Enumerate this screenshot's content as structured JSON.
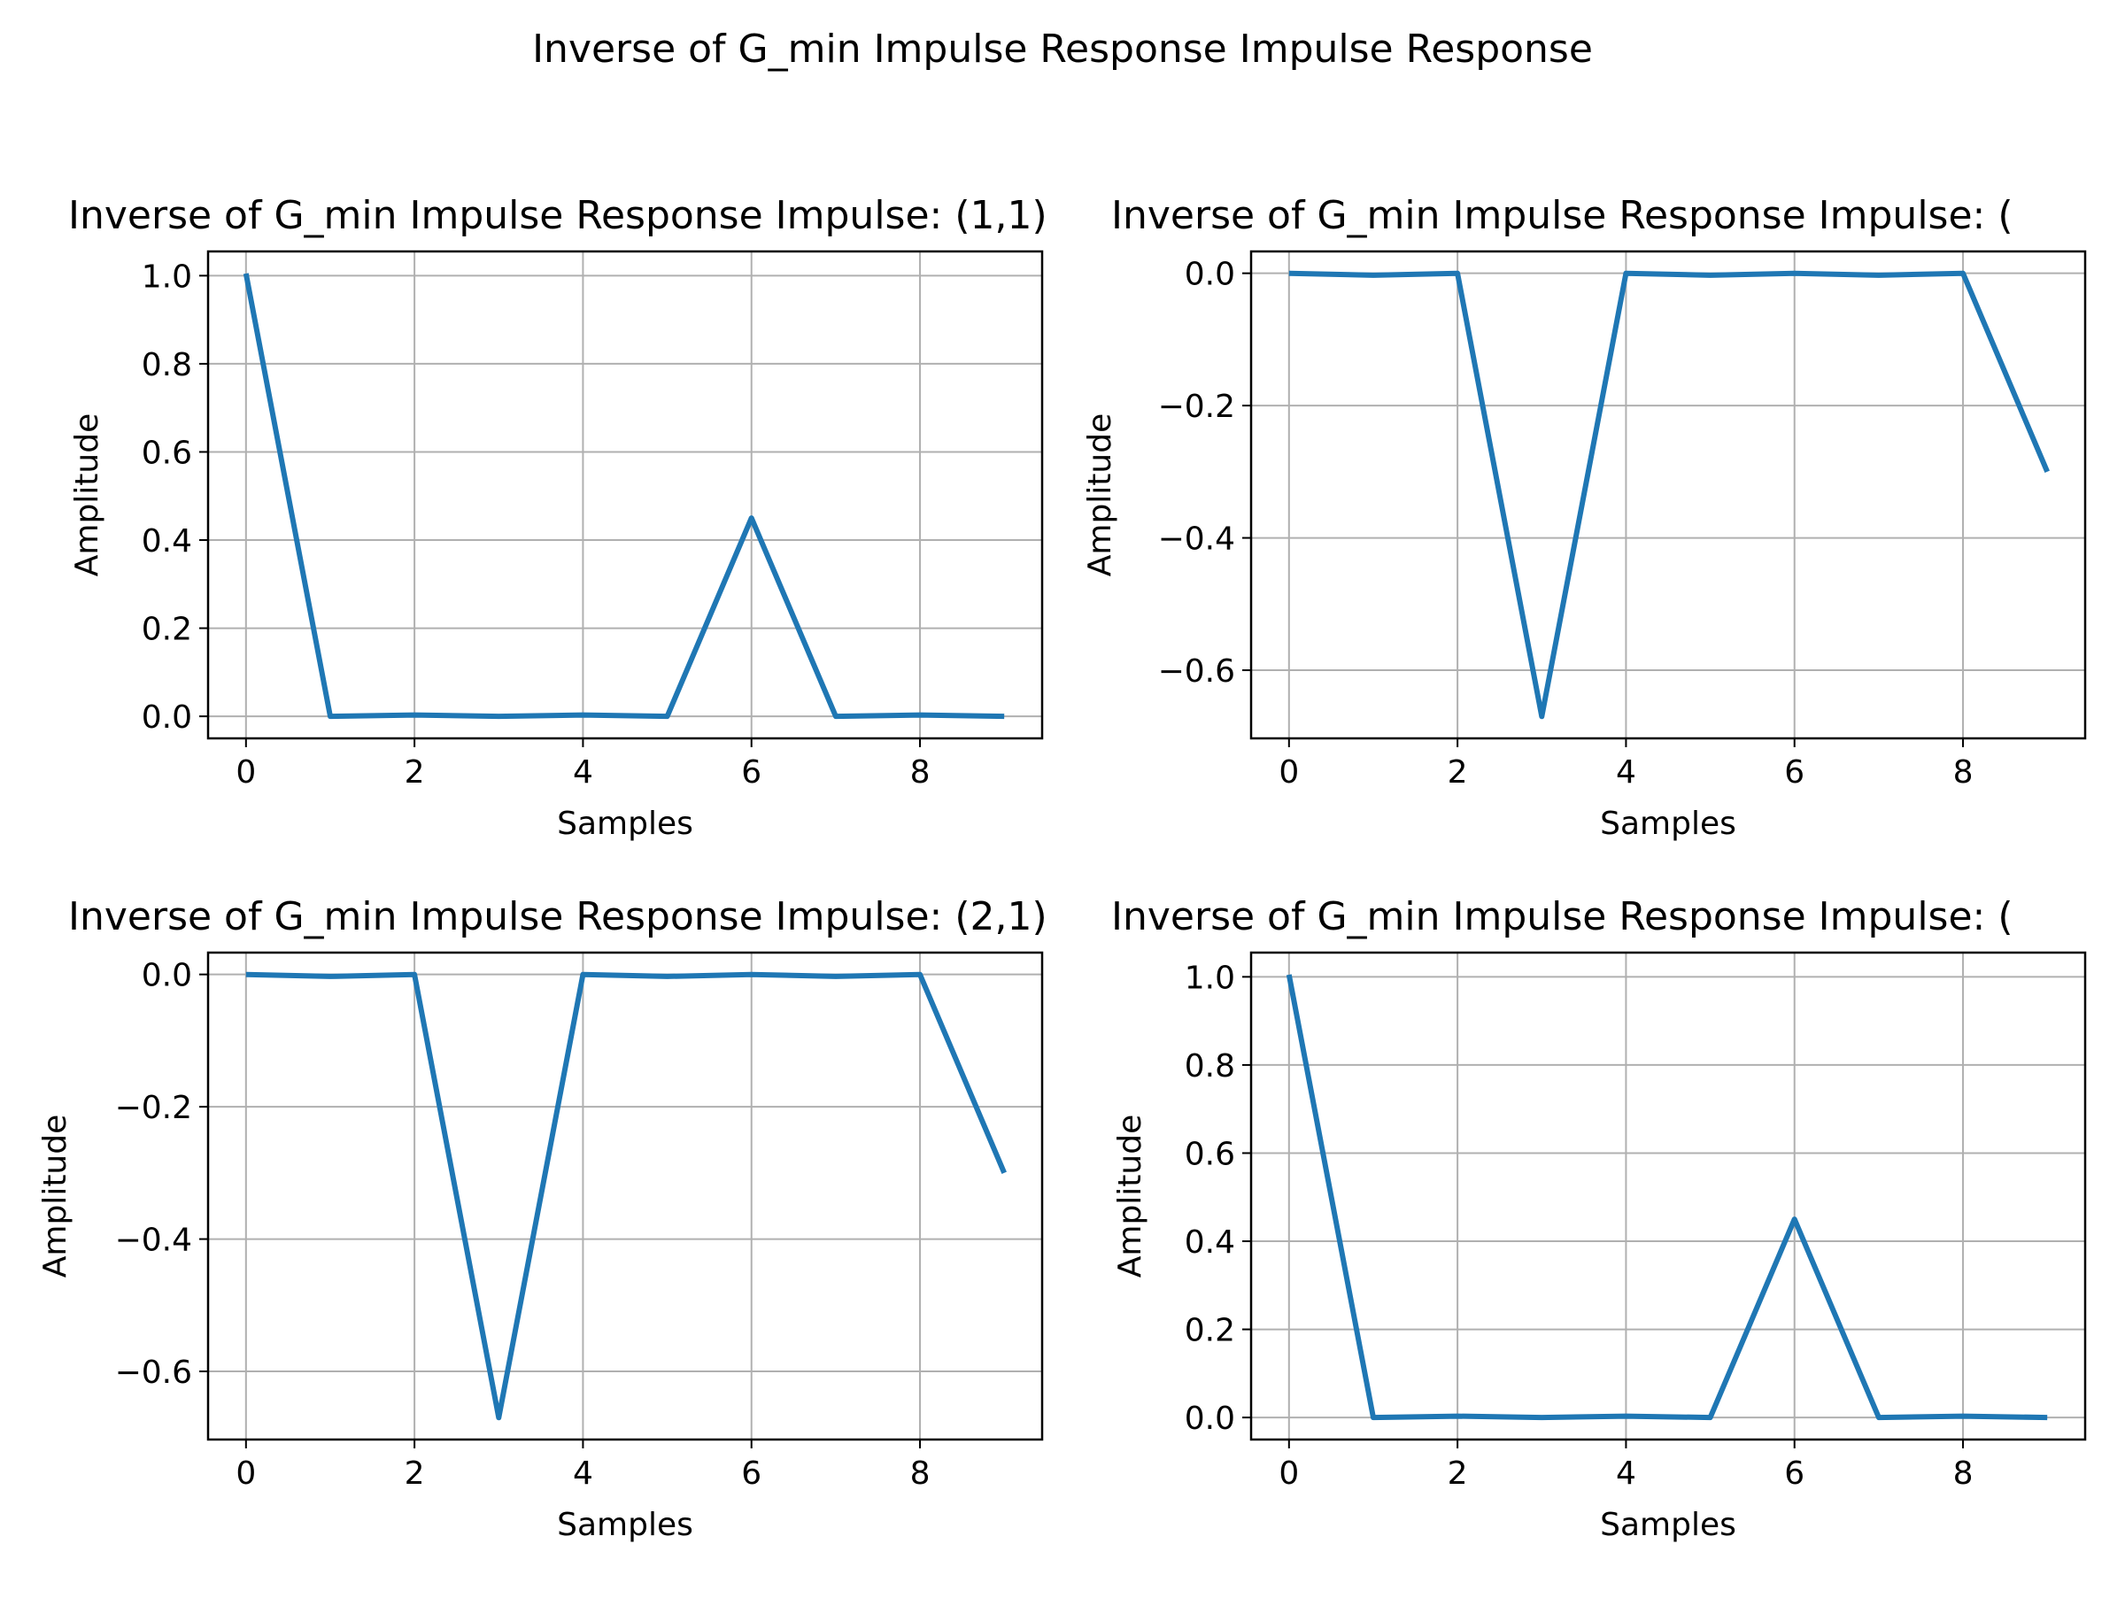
{
  "chart_data": {
    "suptitle": "Inverse of G_min Impulse Response Impulse Response",
    "subplots": [
      {
        "type": "line",
        "title": "Inverse of G_min Impulse Response Impulse: (1,1)",
        "xlabel": "Samples",
        "ylabel": "Amplitude",
        "x": [
          0,
          1,
          2,
          3,
          4,
          5,
          6,
          7,
          8,
          9
        ],
        "values": [
          1.005,
          0.0,
          0.003,
          0.0,
          0.003,
          0.0,
          0.45,
          0.0,
          0.003,
          0.0
        ],
        "xlim": [
          -0.45,
          9.45
        ],
        "ylim": [
          -0.05,
          1.055
        ],
        "xticks": [
          0,
          2,
          4,
          6,
          8
        ],
        "xtick_labels": [
          "0",
          "2",
          "4",
          "6",
          "8"
        ],
        "yticks": [
          0.0,
          0.2,
          0.4,
          0.6,
          0.8,
          1.0
        ],
        "ytick_labels": [
          "0.0",
          "0.2",
          "0.4",
          "0.6",
          "0.8",
          "1.0"
        ],
        "color": "#1f77b4",
        "grid": true
      },
      {
        "type": "line",
        "title": "Inverse of G_min Impulse Response Impulse: (",
        "xlabel": "Samples",
        "ylabel": "Amplitude",
        "x": [
          0,
          1,
          2,
          3,
          4,
          5,
          6,
          7,
          8,
          9
        ],
        "values": [
          0.0,
          -0.003,
          0.0,
          -0.67,
          0.0,
          -0.003,
          0.0,
          -0.003,
          0.0,
          -0.3
        ],
        "xlim": [
          -0.45,
          9.45
        ],
        "ylim": [
          -0.703,
          0.033
        ],
        "xticks": [
          0,
          2,
          4,
          6,
          8
        ],
        "xtick_labels": [
          "0",
          "2",
          "4",
          "6",
          "8"
        ],
        "yticks": [
          0.0,
          -0.2,
          -0.4,
          -0.6
        ],
        "ytick_labels": [
          "0.0",
          "−0.2",
          "−0.4",
          "−0.6"
        ],
        "color": "#1f77b4",
        "grid": true
      },
      {
        "type": "line",
        "title": "Inverse of G_min Impulse Response Impulse: (2,1)",
        "xlabel": "Samples",
        "ylabel": "Amplitude",
        "x": [
          0,
          1,
          2,
          3,
          4,
          5,
          6,
          7,
          8,
          9
        ],
        "values": [
          0.0,
          -0.003,
          0.0,
          -0.67,
          0.0,
          -0.003,
          0.0,
          -0.003,
          0.0,
          -0.3
        ],
        "xlim": [
          -0.45,
          9.45
        ],
        "ylim": [
          -0.703,
          0.033
        ],
        "xticks": [
          0,
          2,
          4,
          6,
          8
        ],
        "xtick_labels": [
          "0",
          "2",
          "4",
          "6",
          "8"
        ],
        "yticks": [
          0.0,
          -0.2,
          -0.4,
          -0.6
        ],
        "ytick_labels": [
          "0.0",
          "−0.2",
          "−0.4",
          "−0.6"
        ],
        "color": "#1f77b4",
        "grid": true
      },
      {
        "type": "line",
        "title": "Inverse of G_min Impulse Response Impulse: (",
        "xlabel": "Samples",
        "ylabel": "Amplitude",
        "x": [
          0,
          1,
          2,
          3,
          4,
          5,
          6,
          7,
          8,
          9
        ],
        "values": [
          1.005,
          0.0,
          0.003,
          0.0,
          0.003,
          0.0,
          0.45,
          0.0,
          0.003,
          0.0
        ],
        "xlim": [
          -0.45,
          9.45
        ],
        "ylim": [
          -0.05,
          1.055
        ],
        "xticks": [
          0,
          2,
          4,
          6,
          8
        ],
        "xtick_labels": [
          "0",
          "2",
          "4",
          "6",
          "8"
        ],
        "yticks": [
          0.0,
          0.2,
          0.4,
          0.6,
          0.8,
          1.0
        ],
        "ytick_labels": [
          "0.0",
          "0.2",
          "0.4",
          "0.6",
          "0.8",
          "1.0"
        ],
        "color": "#1f77b4",
        "grid": true
      }
    ]
  }
}
